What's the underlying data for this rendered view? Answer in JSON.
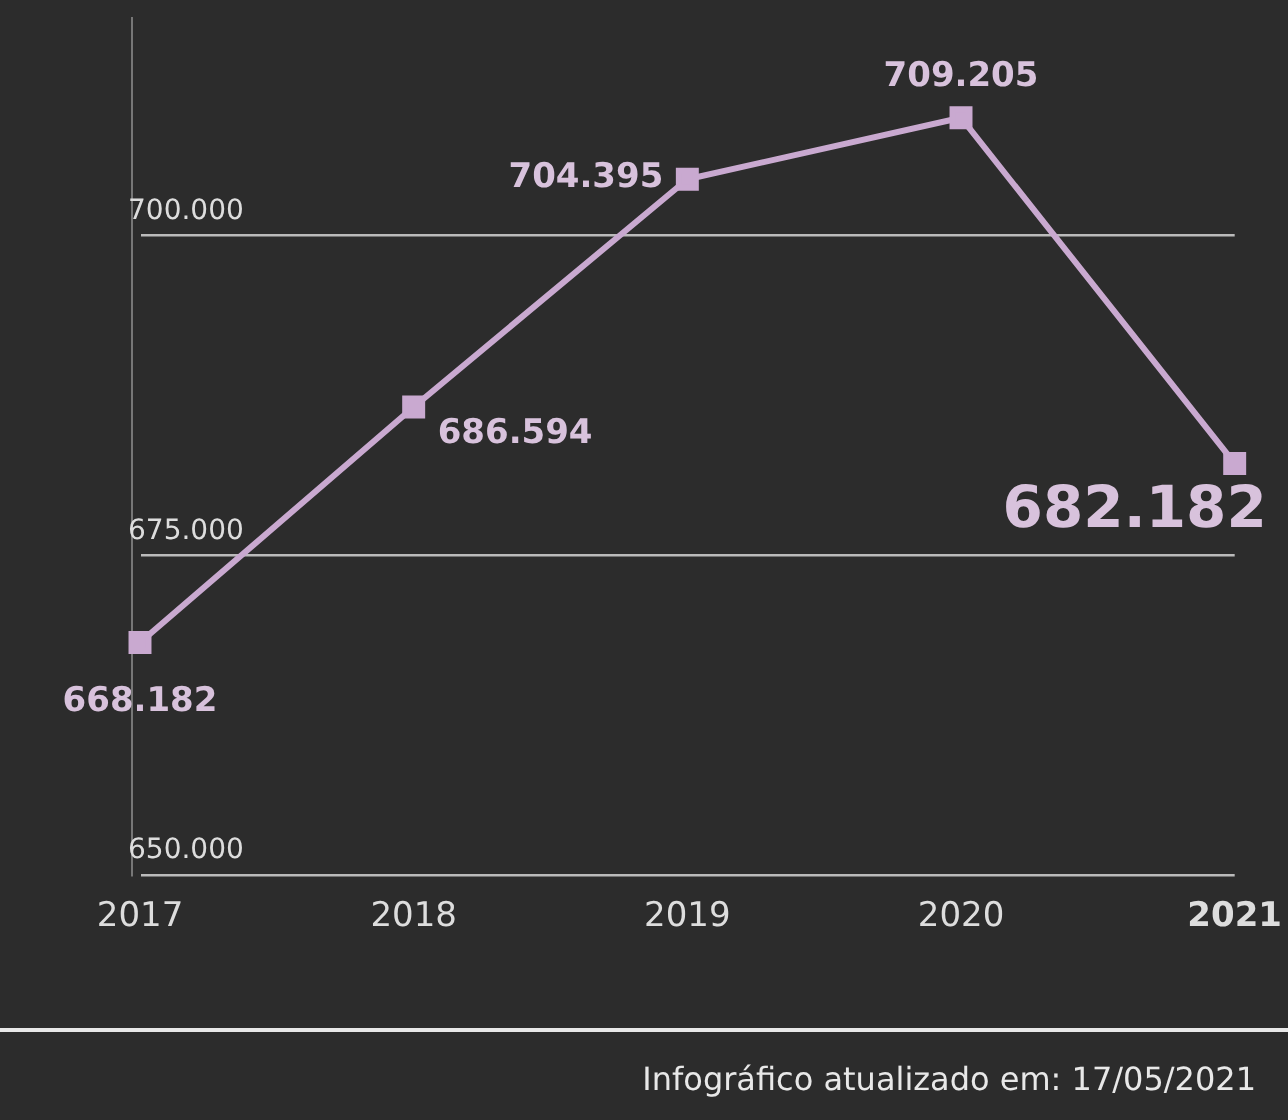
{
  "chart_data": {
    "type": "line",
    "categories": [
      "2017",
      "2018",
      "2019",
      "2020",
      "2021"
    ],
    "series": [
      {
        "color": "#c9a9d0",
        "values": [
          668182,
          686594,
          704395,
          709205,
          682182
        ],
        "value_labels": [
          "668.182",
          "686.594",
          "704.395",
          "709.205",
          "682.182"
        ]
      }
    ],
    "ylim": [
      650000,
      717000
    ],
    "yticks": [
      {
        "value": 650000,
        "label": "650.000"
      },
      {
        "value": 675000,
        "label": "675.000"
      },
      {
        "value": 700000,
        "label": "700.000"
      }
    ],
    "grid": "y",
    "marker": "square",
    "line_style": "solid",
    "legend": false,
    "annotations": [
      "Infográfico atualizado em: 17/05/2021"
    ]
  }
}
